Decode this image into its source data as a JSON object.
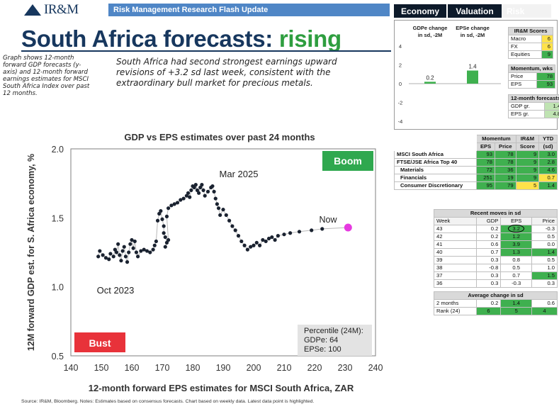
{
  "header": {
    "logo_text": "IR&M",
    "banner": "Risk Management Research Flash Update",
    "tabs": [
      "Economy",
      "Valuation",
      "Risk"
    ]
  },
  "title": {
    "main": "South Africa forecasts: ",
    "accent": "rising"
  },
  "side_note": "Graph shows 12-month forward GDP forecasts (y-axis) and 12-month forward earnings estimates for MSCI South Africa Index over past 12 months.",
  "lead": "South Africa had second strongest earnings upward revisions of +3.2 sd last week, consistent with the extraordinary bull market for precious metals.",
  "colors": {
    "navy": "#17375e",
    "green": "#2e9e3f",
    "boom": "#2fa84f",
    "bust": "#e8323a",
    "dot": "#1a2230",
    "now": "#e63ae0"
  },
  "mini_chart": {
    "headers": [
      "GDPe change in sd, -2M",
      "EPSe change in sd, -2M"
    ],
    "values": [
      0.2,
      1.4
    ],
    "labels": [
      "0.2",
      "1.4"
    ],
    "y_ticks": [
      "4",
      "2",
      "0",
      "-2",
      "-4"
    ],
    "ylim": [
      -4,
      4
    ]
  },
  "scores_panel": {
    "title": "IR&M Scores",
    "rows": [
      [
        "Macro",
        "6"
      ],
      [
        "FX",
        "6"
      ],
      [
        "Equities",
        "9"
      ]
    ],
    "momentum_title": "Momentum, wks",
    "momentum_rows": [
      [
        "Price",
        "78"
      ],
      [
        "EPS",
        "93"
      ]
    ],
    "forecast_title": "12-month forecasts",
    "forecast_rows": [
      [
        "GDP gr.",
        "1.4"
      ],
      [
        "EPS gr.",
        "4.8"
      ]
    ]
  },
  "momentum_table": {
    "group_headers": [
      "Momentum",
      "IR&M",
      "YTD"
    ],
    "sub_headers": [
      "EPS",
      "Price",
      "Score",
      "(sd)"
    ],
    "rows": [
      {
        "name": "MSCI South Africa",
        "eps": "93",
        "price": "78",
        "score": "9",
        "ytd": "3.0"
      },
      {
        "name": "FTSE/JSE Africa Top 40",
        "eps": "78",
        "price": "78",
        "score": "9",
        "ytd": "2.8"
      },
      {
        "name": "Materials",
        "eps": "72",
        "price": "36",
        "score": "9",
        "ytd": "4.6"
      },
      {
        "name": "Financials",
        "eps": "251",
        "price": "19",
        "score": "9",
        "ytd": "0.7"
      },
      {
        "name": "Consumer Discretionary",
        "eps": "95",
        "price": "79",
        "score": "5",
        "ytd": "1.4"
      }
    ]
  },
  "recent_moves": {
    "title": "Recent moves in sd",
    "headers": [
      "Week",
      "GDP",
      "EPS",
      "Price"
    ],
    "rows": [
      [
        "43",
        "0.2",
        "3.2",
        "-0.3"
      ],
      [
        "42",
        "0.2",
        "1.2",
        "0.5"
      ],
      [
        "41",
        "0.6",
        "3.9",
        "0.0"
      ],
      [
        "40",
        "0.7",
        "1.3",
        "1.4"
      ],
      [
        "39",
        "0.3",
        "0.8",
        "0.5"
      ],
      [
        "38",
        "-0.8",
        "0.5",
        "1.0"
      ],
      [
        "37",
        "0.3",
        "0.7",
        "1.5"
      ],
      [
        "36",
        "0.3",
        "-0.3",
        "0.3"
      ]
    ],
    "avg_title": "Average change in sd",
    "avg_rows": [
      [
        "2 months",
        "0.2",
        "1.4",
        "0.6"
      ],
      [
        "Rank (24)",
        "6",
        "5",
        "4"
      ]
    ]
  },
  "chart_data": {
    "type": "scatter",
    "title": "GDP vs EPS estimates over past 24 months",
    "xlabel": "12-month forward EPS estimates for MSCI South Africa, ZAR",
    "ylabel": "12M forward GDP est. for S. Africa economy, %",
    "xlim": [
      140,
      240
    ],
    "ylim": [
      0.5,
      2.0
    ],
    "x_ticks": [
      140,
      150,
      160,
      170,
      180,
      190,
      200,
      210,
      220,
      230,
      240
    ],
    "y_ticks": [
      "0.5",
      "1.0",
      "1.5",
      "2.0"
    ],
    "annotations": {
      "start": "Oct 2023",
      "peak": "Mar 2025",
      "now": "Now",
      "boom": "Boom",
      "bust": "Bust"
    },
    "percentile": {
      "title": "Percentile (24M):",
      "gdp": "GDPe: 64",
      "eps": "EPSe: 100"
    },
    "points": [
      [
        149,
        1.22
      ],
      [
        149.5,
        1.26
      ],
      [
        150.5,
        1.23
      ],
      [
        151.5,
        1.21
      ],
      [
        152.5,
        1.2
      ],
      [
        153,
        1.24
      ],
      [
        154,
        1.22
      ],
      [
        154.5,
        1.27
      ],
      [
        155,
        1.25
      ],
      [
        155.5,
        1.31
      ],
      [
        156,
        1.23
      ],
      [
        156.5,
        1.19
      ],
      [
        157,
        1.26
      ],
      [
        157.5,
        1.29
      ],
      [
        158,
        1.22
      ],
      [
        158.5,
        1.18
      ],
      [
        159,
        1.25
      ],
      [
        159.5,
        1.31
      ],
      [
        160,
        1.34
      ],
      [
        160.5,
        1.28
      ],
      [
        161,
        1.33
      ],
      [
        161.5,
        1.25
      ],
      [
        162,
        1.22
      ],
      [
        163,
        1.26
      ],
      [
        164,
        1.27
      ],
      [
        165,
        1.26
      ],
      [
        166,
        1.25
      ],
      [
        167,
        1.27
      ],
      [
        167.5,
        1.3
      ],
      [
        168,
        1.33
      ],
      [
        168.5,
        1.48
      ],
      [
        169,
        1.53
      ],
      [
        169.5,
        1.55
      ],
      [
        170,
        1.49
      ],
      [
        170.5,
        1.44
      ],
      [
        170.5,
        1.39
      ],
      [
        171,
        1.36
      ],
      [
        171.5,
        1.32
      ],
      [
        171,
        1.29
      ],
      [
        172,
        1.34
      ],
      [
        171.5,
        1.51
      ],
      [
        172,
        1.57
      ],
      [
        173,
        1.59
      ],
      [
        174,
        1.6
      ],
      [
        175,
        1.61
      ],
      [
        176,
        1.63
      ],
      [
        177,
        1.64
      ],
      [
        178,
        1.66
      ],
      [
        178.5,
        1.68
      ],
      [
        179,
        1.65
      ],
      [
        179.5,
        1.7
      ],
      [
        180,
        1.73
      ],
      [
        180.5,
        1.72
      ],
      [
        181,
        1.74
      ],
      [
        181.5,
        1.7
      ],
      [
        182,
        1.68
      ],
      [
        182.5,
        1.72
      ],
      [
        183,
        1.74
      ],
      [
        183.5,
        1.7
      ],
      [
        184,
        1.66
      ],
      [
        185,
        1.69
      ],
      [
        186,
        1.72
      ],
      [
        186.5,
        1.73
      ],
      [
        187,
        1.69
      ],
      [
        187.5,
        1.64
      ],
      [
        188,
        1.6
      ],
      [
        188.5,
        1.57
      ],
      [
        189,
        1.52
      ],
      [
        190,
        1.56
      ],
      [
        191,
        1.52
      ],
      [
        192,
        1.48
      ],
      [
        193,
        1.44
      ],
      [
        194,
        1.41
      ],
      [
        195,
        1.37
      ],
      [
        196,
        1.33
      ],
      [
        197,
        1.3
      ],
      [
        198,
        1.27
      ],
      [
        199,
        1.29
      ],
      [
        200,
        1.3
      ],
      [
        201,
        1.32
      ],
      [
        202,
        1.3
      ],
      [
        203,
        1.34
      ],
      [
        204,
        1.33
      ],
      [
        205,
        1.35
      ],
      [
        206,
        1.36
      ],
      [
        207,
        1.34
      ],
      [
        208,
        1.37
      ],
      [
        210,
        1.38
      ],
      [
        212,
        1.39
      ],
      [
        215,
        1.4
      ],
      [
        219,
        1.41
      ],
      [
        222.5,
        1.42
      ],
      [
        231,
        1.43
      ]
    ]
  },
  "footer": "Source: IR&M, Bloomberg. Notes: Estimates based on consensus forecasts. Chart based on weekly data. Latest data point is highlighted."
}
